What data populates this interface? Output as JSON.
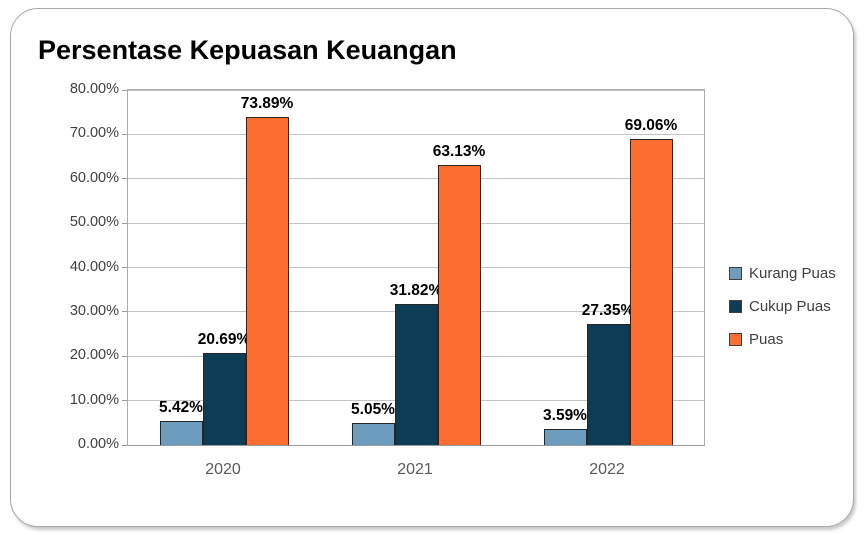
{
  "chart_data": {
    "type": "bar",
    "title": "Persentase Kepuasan Keuangan",
    "categories": [
      "2020",
      "2021",
      "2022"
    ],
    "series": [
      {
        "name": "Kurang Puas",
        "color": "#6C9DBF",
        "values": [
          5.42,
          5.05,
          3.59
        ],
        "labels": [
          "5.42%",
          "5.05%",
          "3.59%"
        ]
      },
      {
        "name": "Cukup Puas",
        "color": "#0D3D56",
        "values": [
          20.69,
          31.82,
          27.35
        ],
        "labels": [
          "20.69%",
          "31.82%",
          "27.35%"
        ]
      },
      {
        "name": "Puas",
        "color": "#FA6E32",
        "values": [
          73.89,
          63.13,
          69.06
        ],
        "labels": [
          "73.89%",
          "63.13%",
          "69.06%"
        ]
      }
    ],
    "ylabel": "",
    "xlabel": "",
    "ylim": [
      0,
      80
    ],
    "y_tick_step": 10,
    "y_ticks": [
      "0.00%",
      "10.00%",
      "20.00%",
      "30.00%",
      "40.00%",
      "50.00%",
      "60.00%",
      "70.00%",
      "80.00%"
    ],
    "grid": true,
    "legend_position": "right"
  }
}
